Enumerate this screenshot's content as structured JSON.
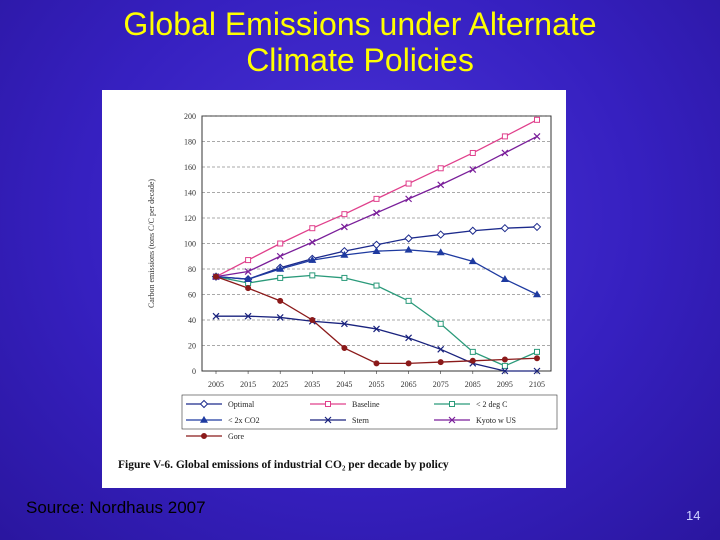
{
  "slide": {
    "title_line1": "Global Emissions under Alternate",
    "title_line2": "Climate Policies",
    "source": "Source: Nordhaus 2007",
    "page_number": "14"
  },
  "chart_data": {
    "type": "line",
    "caption": "Figure V-6. Global emissions of industrial CO₂ per decade by policy",
    "ylabel": "Carbon emissions (tons C/C per decade)",
    "xlabel": "",
    "ylim": [
      0,
      200
    ],
    "yticks": [
      0,
      20,
      40,
      60,
      80,
      100,
      120,
      140,
      160,
      180,
      200
    ],
    "categories": [
      "2005",
      "2015",
      "2025",
      "2035",
      "2045",
      "2055",
      "2065",
      "2075",
      "2085",
      "2095",
      "2105"
    ],
    "grid": "horizontal dashed",
    "legend_position": "bottom",
    "series": [
      {
        "name": "Optimal",
        "color": "#1c2a8c",
        "marker": "diamond",
        "values": [
          74,
          72,
          81,
          88,
          94,
          99,
          104,
          107,
          110,
          112,
          113
        ]
      },
      {
        "name": "Baseline",
        "color": "#e0408c",
        "marker": "square",
        "values": [
          74,
          87,
          100,
          112,
          123,
          135,
          147,
          159,
          171,
          184,
          197
        ]
      },
      {
        "name": "< 2 deg C",
        "color": "#2a9a7a",
        "marker": "square",
        "values": [
          74,
          69,
          73,
          75,
          73,
          67,
          55,
          37,
          15,
          4,
          15
        ]
      },
      {
        "name": "< 2x CO2",
        "color": "#1e3aa0",
        "marker": "triangle",
        "values": [
          74,
          72,
          80,
          87,
          91,
          94,
          95,
          93,
          86,
          72,
          60
        ]
      },
      {
        "name": "Stern",
        "color": "#1a237e",
        "marker": "x",
        "values": [
          43,
          43,
          42,
          39,
          37,
          33,
          26,
          17,
          6,
          0,
          0
        ]
      },
      {
        "name": "Kyoto w US",
        "color": "#7a1f9a",
        "marker": "x",
        "values": [
          74,
          78,
          90,
          101,
          113,
          124,
          135,
          146,
          158,
          171,
          184
        ]
      },
      {
        "name": "Gore",
        "color": "#8b1a1a",
        "marker": "circle",
        "values": [
          74,
          65,
          55,
          40,
          18,
          6,
          6,
          7,
          8,
          9,
          10
        ]
      }
    ]
  }
}
